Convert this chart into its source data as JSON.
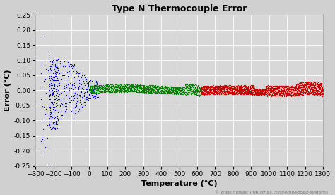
{
  "title": "Type N Thermocouple Error",
  "xlabel": "Temperature (°C)",
  "ylabel": "Error (°C)",
  "xlim": [
    -300,
    1300
  ],
  "ylim": [
    -0.25,
    0.25
  ],
  "xticks": [
    -300,
    -200,
    -100,
    0,
    100,
    200,
    300,
    400,
    500,
    600,
    700,
    800,
    900,
    1000,
    1100,
    1200,
    1300
  ],
  "yticks": [
    -0.25,
    -0.2,
    -0.15,
    -0.1,
    -0.05,
    0.0,
    0.05,
    0.1,
    0.15,
    0.2,
    0.25
  ],
  "blue_color": "#0000cc",
  "green_color": "#008000",
  "red_color": "#cc0000",
  "bg_color": "#d0d0d0",
  "plot_bg_color": "#d8d8d8",
  "watermark": "© www.mosaic-industries.com/embedded-systems",
  "title_fontsize": 9,
  "axis_label_fontsize": 8,
  "tick_fontsize": 6.5
}
